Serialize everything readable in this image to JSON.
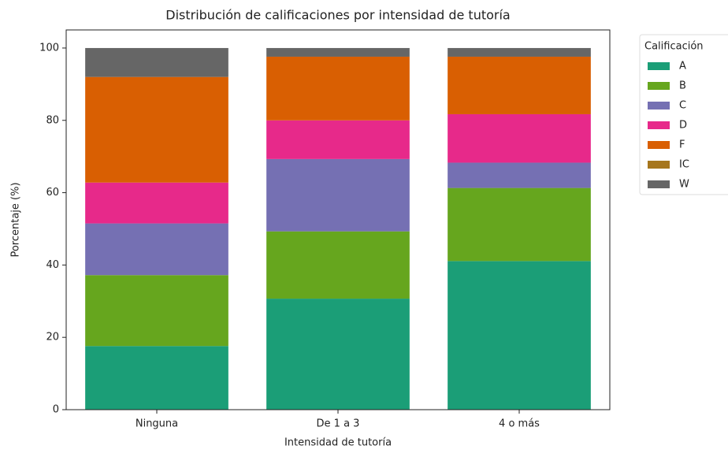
{
  "chart_data": {
    "type": "stacked_bar",
    "title": "Distribución de calificaciones por intensidad de tutoría",
    "xlabel": "Intensidad de tutoría",
    "ylabel": "Porcentaje (%)",
    "categories": [
      "Ninguna",
      "De 1 a 3",
      "4 o más"
    ],
    "series": [
      {
        "name": "A",
        "color": "#1b9e77",
        "values": [
          17.6,
          30.7,
          41.1
        ]
      },
      {
        "name": "B",
        "color": "#66a61e",
        "values": [
          19.6,
          18.6,
          20.2
        ]
      },
      {
        "name": "C",
        "color": "#7570b3",
        "values": [
          14.3,
          20.0,
          7.0
        ]
      },
      {
        "name": "D",
        "color": "#e7298a",
        "values": [
          11.3,
          10.7,
          13.4
        ]
      },
      {
        "name": "F",
        "color": "#d95f02",
        "values": [
          29.2,
          17.6,
          15.9
        ]
      },
      {
        "name": "IC",
        "color": "#a6761d",
        "values": [
          0,
          0,
          0
        ]
      },
      {
        "name": "W",
        "color": "#666666",
        "values": [
          8.0,
          2.4,
          2.4
        ]
      }
    ],
    "legend_title": "Calificación",
    "legend": "outside-upper-right",
    "ylim": [
      0,
      105
    ],
    "yticks": [
      0,
      20,
      40,
      60,
      80,
      100
    ],
    "grid": false
  }
}
